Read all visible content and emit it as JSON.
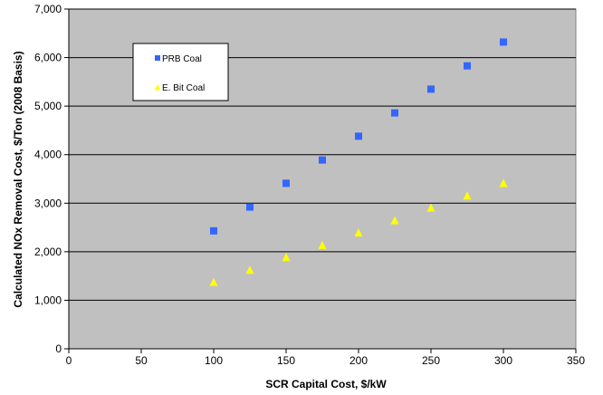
{
  "chart_data": {
    "type": "scatter",
    "xlabel": "SCR Capital Cost, $/kW",
    "ylabel": "Calculated NOx Removal Cost, $/Ton (2008 Basis)",
    "xlim": [
      0,
      350
    ],
    "ylim": [
      0,
      7000
    ],
    "x_ticks": [
      0,
      50,
      100,
      150,
      200,
      250,
      300,
      350
    ],
    "y_ticks": [
      0,
      1000,
      2000,
      3000,
      4000,
      5000,
      6000,
      7000
    ],
    "x_tick_labels": [
      "0",
      "50",
      "100",
      "150",
      "200",
      "250",
      "300",
      "350"
    ],
    "y_tick_labels": [
      "0",
      "1,000",
      "2,000",
      "3,000",
      "4,000",
      "5,000",
      "6,000",
      "7,000"
    ],
    "grid": "horizontal",
    "plot_background": "#c0c0c0",
    "legend_position": "upper-left inside plot",
    "series": [
      {
        "name": "PRB Coal",
        "marker": "square",
        "color": "#3366ff",
        "x": [
          100,
          125,
          150,
          175,
          200,
          225,
          250,
          275,
          300
        ],
        "y": [
          2430,
          2920,
          3410,
          3890,
          4380,
          4860,
          5350,
          5830,
          6320
        ]
      },
      {
        "name": "E. Bit Coal",
        "marker": "triangle",
        "color": "#ffff00",
        "x": [
          100,
          125,
          150,
          175,
          200,
          225,
          250,
          275,
          300
        ],
        "y": [
          1370,
          1620,
          1880,
          2130,
          2390,
          2640,
          2900,
          3150,
          3410
        ]
      }
    ]
  }
}
